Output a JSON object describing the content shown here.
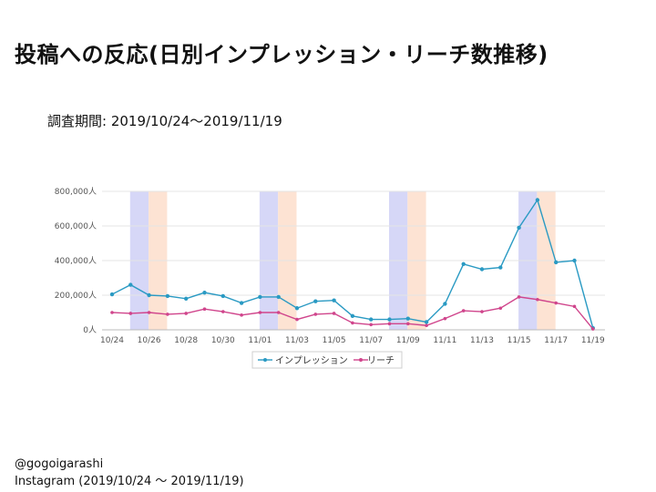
{
  "title": "投稿への反応(日別インプレッション・リーチ数推移)",
  "period": "調査期間: 2019/10/24～2019/11/19",
  "footer": {
    "account": "@gogoigarashi",
    "source": "Instagram (2019/10/24 ～ 2019/11/19)"
  },
  "colors": {
    "impressions": "#2a9ac3",
    "reach": "#d0458c",
    "band_blue": "#d6d7f7",
    "band_orange": "#fde3d3"
  },
  "chart_data": {
    "type": "line",
    "title": "",
    "xlabel": "",
    "ylabel": "",
    "ylim": [
      0,
      800000
    ],
    "yticks": [
      "0人",
      "200,000人",
      "400,000人",
      "600,000人",
      "800,000人"
    ],
    "grid": true,
    "legend_position": "bottom",
    "x": [
      "10/24",
      "10/25",
      "10/26",
      "10/27",
      "10/28",
      "10/29",
      "10/30",
      "10/31",
      "11/01",
      "11/02",
      "11/03",
      "11/04",
      "11/05",
      "11/06",
      "11/07",
      "11/08",
      "11/09",
      "11/10",
      "11/11",
      "11/12",
      "11/13",
      "11/14",
      "11/15",
      "11/16",
      "11/17",
      "11/18",
      "11/19"
    ],
    "xtick_labels": [
      "10/24",
      "10/26",
      "10/28",
      "10/30",
      "11/01",
      "11/03",
      "11/05",
      "11/07",
      "11/09",
      "11/11",
      "11/13",
      "11/15",
      "11/17",
      "11/19"
    ],
    "series": [
      {
        "name": "インプレッション",
        "values": [
          205000,
          260000,
          200000,
          195000,
          180000,
          215000,
          195000,
          155000,
          190000,
          190000,
          125000,
          165000,
          170000,
          80000,
          60000,
          60000,
          65000,
          45000,
          150000,
          380000,
          350000,
          360000,
          590000,
          750000,
          390000,
          400000,
          10000
        ]
      },
      {
        "name": "リーチ",
        "values": [
          100000,
          95000,
          100000,
          90000,
          95000,
          120000,
          105000,
          85000,
          100000,
          100000,
          60000,
          90000,
          95000,
          40000,
          30000,
          35000,
          35000,
          25000,
          65000,
          110000,
          105000,
          125000,
          190000,
          175000,
          155000,
          135000,
          5000
        ]
      }
    ],
    "highlight_bands": [
      {
        "start": "10/25",
        "end": "10/26",
        "color": "blue"
      },
      {
        "start": "10/26",
        "end": "10/27",
        "color": "orange"
      },
      {
        "start": "11/01",
        "end": "11/02",
        "color": "blue"
      },
      {
        "start": "11/02",
        "end": "11/03",
        "color": "orange"
      },
      {
        "start": "11/08",
        "end": "11/09",
        "color": "blue"
      },
      {
        "start": "11/09",
        "end": "11/10",
        "color": "orange"
      },
      {
        "start": "11/15",
        "end": "11/16",
        "color": "blue"
      },
      {
        "start": "11/16",
        "end": "11/17",
        "color": "orange"
      }
    ]
  }
}
